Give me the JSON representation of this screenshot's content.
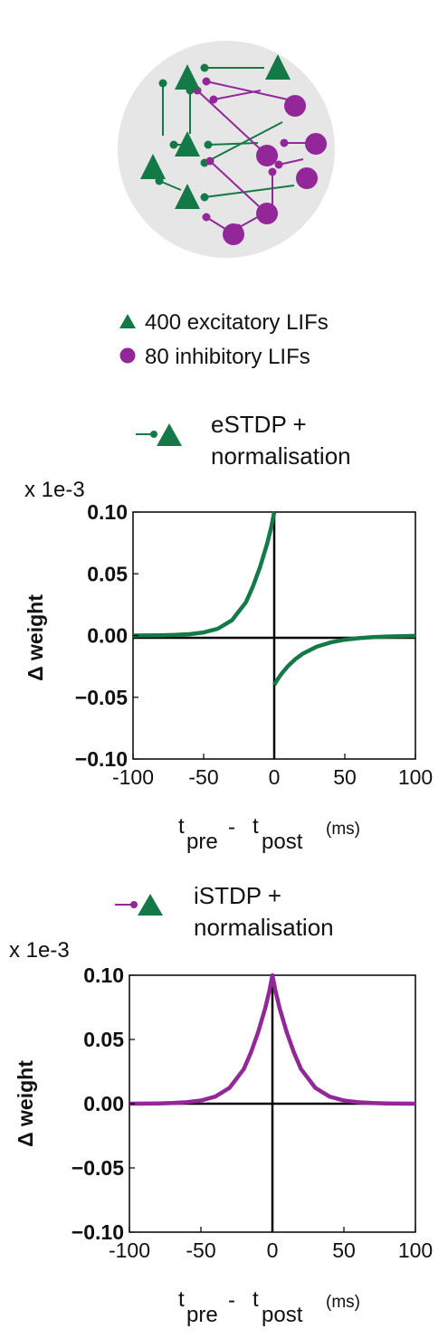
{
  "network": {
    "legend": [
      {
        "label": "400 excitatory LIFs",
        "marker": "triangle",
        "color": "#137a47"
      },
      {
        "label": "80 inhibitory LIFs",
        "marker": "circle",
        "color": "#93279a"
      }
    ],
    "colors": {
      "background_disc": "#e6e6e6",
      "excitatory": "#137a47",
      "inhibitory": "#93279a"
    }
  },
  "chart_data": [
    {
      "type": "line",
      "rule_title_line1": "eSTDP +",
      "rule_title_line2": "normalisation",
      "synapse_color": "#137a47",
      "scale_label": "x 1e-3",
      "ylabel": "Δ weight",
      "xlabel_t": "t",
      "xlabel_pre": "pre",
      "xlabel_minus": "-",
      "xlabel_post": "post",
      "xlabel_units": "(ms)",
      "xlim": [
        -100,
        100
      ],
      "ylim": [
        -0.1,
        0.1
      ],
      "xticks": [
        -100,
        -50,
        0,
        50,
        100
      ],
      "xtick_labels": [
        "-100",
        "-50",
        "0",
        "50",
        "100"
      ],
      "yticks": [
        0.1,
        0.05,
        0.0,
        -0.05,
        -0.1
      ],
      "ytick_labels": [
        "0.10",
        "0.05",
        "0.00",
        "−0.05",
        "−0.10"
      ],
      "series": [
        {
          "color": "#137a47",
          "x": [
            -100,
            -90,
            -80,
            -70,
            -60,
            -50,
            -40,
            -30,
            -20,
            -15,
            -10,
            -5,
            -2,
            0
          ],
          "y": [
            0.0,
            0.0001,
            0.0002,
            0.0005,
            0.0011,
            0.0025,
            0.0055,
            0.0123,
            0.027,
            0.04,
            0.0556,
            0.0745,
            0.0883,
            0.1
          ]
        },
        {
          "color": "#137a47",
          "x": [
            0,
            2,
            5,
            10,
            15,
            20,
            30,
            40,
            50,
            60,
            70,
            80,
            90,
            100
          ],
          "y": [
            -0.04,
            -0.0362,
            -0.0312,
            -0.0244,
            -0.0191,
            -0.0149,
            -0.0091,
            -0.0056,
            -0.0034,
            -0.0021,
            -0.0013,
            -0.0008,
            -0.0005,
            -0.0003
          ]
        }
      ]
    },
    {
      "type": "line",
      "rule_title_line1": "iSTDP +",
      "rule_title_line2": "normalisation",
      "synapse_color": "#93279a",
      "scale_label": "x 1e-3",
      "ylabel": "Δ weight",
      "xlabel_t": "t",
      "xlabel_pre": "pre",
      "xlabel_minus": "-",
      "xlabel_post": "post",
      "xlabel_units": "(ms)",
      "xlim": [
        -100,
        100
      ],
      "ylim": [
        -0.1,
        0.1
      ],
      "xticks": [
        -100,
        -50,
        0,
        50,
        100
      ],
      "xtick_labels": [
        "-100",
        "-50",
        "0",
        "50",
        "100"
      ],
      "yticks": [
        0.1,
        0.05,
        0.0,
        -0.05,
        -0.1
      ],
      "ytick_labels": [
        "0.10",
        "0.05",
        "0.00",
        "−0.05",
        "−0.10"
      ],
      "series": [
        {
          "color": "#93279a",
          "x": [
            -100,
            -90,
            -80,
            -70,
            -60,
            -50,
            -40,
            -30,
            -20,
            -15,
            -10,
            -5,
            -2,
            0,
            2,
            5,
            10,
            15,
            20,
            30,
            40,
            50,
            60,
            70,
            80,
            90,
            100
          ],
          "y": [
            0.0,
            0.0001,
            0.0002,
            0.0005,
            0.0011,
            0.0025,
            0.0055,
            0.0123,
            0.027,
            0.04,
            0.0556,
            0.0745,
            0.0883,
            0.1,
            0.0883,
            0.0745,
            0.0556,
            0.04,
            0.027,
            0.0123,
            0.0055,
            0.0025,
            0.0011,
            0.0005,
            0.0002,
            0.0001,
            0.0
          ]
        }
      ]
    }
  ]
}
